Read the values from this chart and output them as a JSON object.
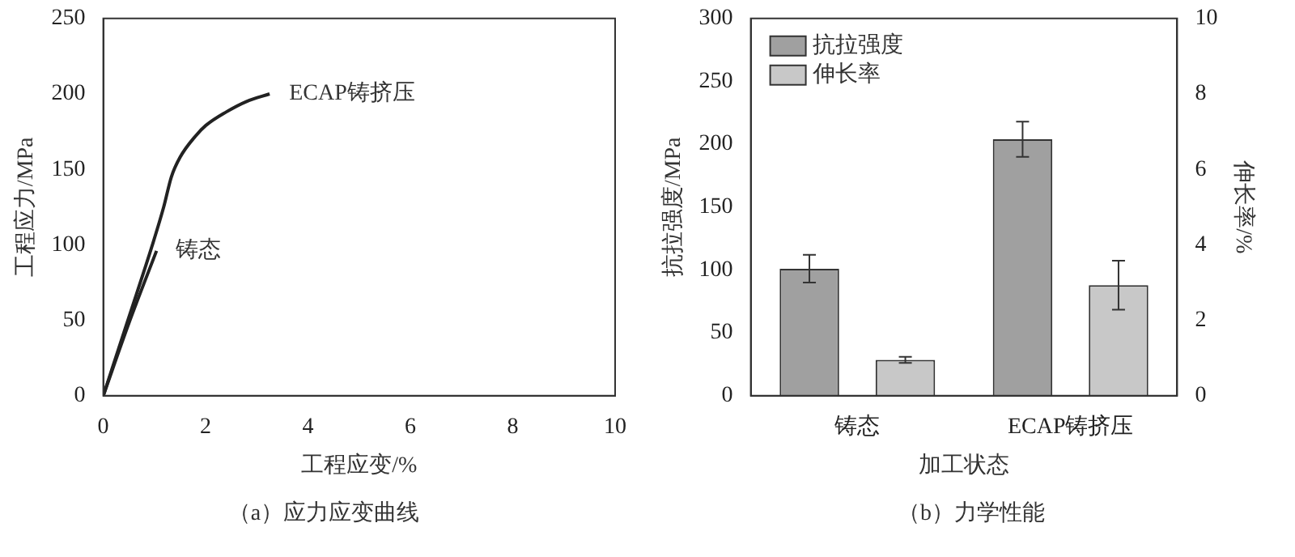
{
  "chart_data": [
    {
      "type": "line",
      "xlabel": "工程应变/%",
      "ylabel": "工程应力/MPa",
      "xlim": [
        0,
        10
      ],
      "xticks": [
        0,
        2,
        4,
        6,
        8,
        10
      ],
      "ylim": [
        0,
        250
      ],
      "yticks": [
        0,
        50,
        100,
        150,
        200,
        250
      ],
      "grid": false,
      "annotations": [
        "（a）应力应变曲线"
      ],
      "series": [
        {
          "name": "ECAP铸挤压",
          "color": "#222222",
          "x": [
            0,
            0.5,
            0.96,
            1.18,
            1.33,
            1.5,
            1.8,
            2.0,
            2.4,
            2.8,
            3.25
          ],
          "values": [
            0,
            52,
            100,
            125,
            145,
            158,
            172,
            179,
            188,
            195,
            200
          ]
        },
        {
          "name": "铸态",
          "color": "#222222",
          "x": [
            0,
            0.5,
            1.04
          ],
          "values": [
            0,
            48,
            96
          ]
        }
      ]
    },
    {
      "type": "bar",
      "categories": [
        "铸态",
        "ECAP铸挤压"
      ],
      "xlabel": "加工状态",
      "ylabel": "抗拉强度/MPa",
      "y2label": "伸长率/%",
      "ylim": [
        0,
        300
      ],
      "yticks": [
        0,
        50,
        100,
        150,
        200,
        250,
        300
      ],
      "y2lim": [
        0,
        10
      ],
      "y2ticks": [
        0,
        2,
        4,
        6,
        8,
        10
      ],
      "legend": "top left",
      "grid": false,
      "annotations": [
        "（b）力学性能"
      ],
      "series": [
        {
          "name": "抗拉强度",
          "color": "#a0a0a0",
          "values": [
            101,
            204
          ],
          "errors": [
            11,
            14
          ]
        },
        {
          "name": "伸长率",
          "axis": "y2",
          "color": "#c8c8c8",
          "values": [
            0.95,
            2.93
          ],
          "errors": [
            0.08,
            0.65
          ]
        }
      ]
    }
  ]
}
